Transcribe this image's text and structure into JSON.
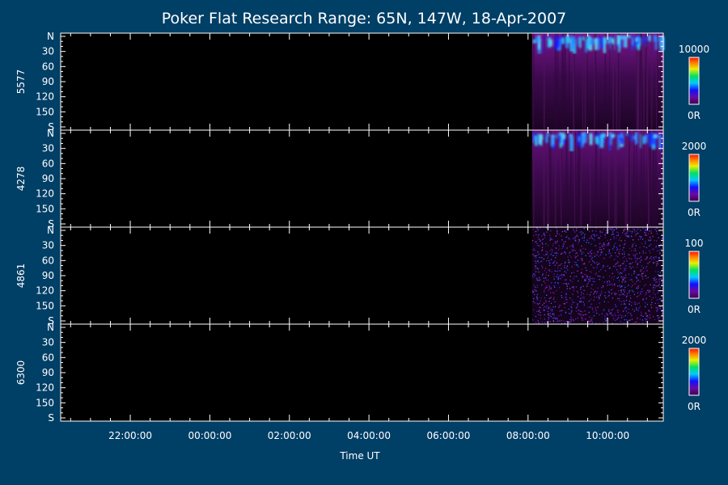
{
  "chart_data": {
    "type": "heatmap",
    "title": "Poker Flat Research Range: 65N, 147W, 18-Apr-2007",
    "xlabel": "Time UT",
    "x_ticks": [
      "22:00:00",
      "00:00:00",
      "02:00:00",
      "04:00:00",
      "06:00:00",
      "08:00:00",
      "10:00:00"
    ],
    "x_range_hours": [
      20.25,
      35.4
    ],
    "x_tick_hours": [
      22,
      24,
      26,
      28,
      30,
      32,
      34
    ],
    "data_start_hour": 32.1,
    "y_ticks": [
      "N",
      "30",
      "60",
      "90",
      "120",
      "150",
      "S"
    ],
    "y_tick_values": [
      0,
      30,
      60,
      90,
      120,
      150,
      180
    ],
    "y_range": [
      0,
      180
    ],
    "colormap": "rainbow",
    "panels": [
      {
        "label": "5577",
        "cb_max": "10000",
        "cb_min": "0R",
        "pattern": "aurora",
        "color": "#7a1590"
      },
      {
        "label": "4278",
        "cb_max": "2000",
        "cb_min": "0R",
        "pattern": "aurora",
        "color": "#6a1080"
      },
      {
        "label": "4861",
        "cb_max": "100",
        "cb_min": "0R",
        "pattern": "noise",
        "color": "#7a2aa0"
      },
      {
        "label": "6300",
        "cb_max": "2000",
        "cb_min": "0R",
        "pattern": "empty",
        "color": "#000000"
      }
    ]
  }
}
